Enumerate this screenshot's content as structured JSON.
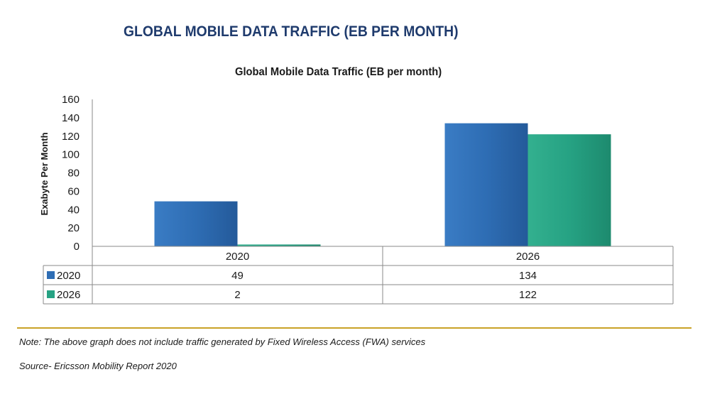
{
  "header": {
    "title": "GLOBAL MOBILE DATA TRAFFIC (EB PER MONTH)"
  },
  "chart_data": {
    "type": "bar",
    "title": "Global Mobile Data Traffic (EB per month)",
    "xlabel": "",
    "ylabel": "Exabyte Per Month",
    "ylim": [
      0,
      160
    ],
    "yticks": [
      0,
      20,
      40,
      60,
      80,
      100,
      120,
      140,
      160
    ],
    "categories": [
      "2020",
      "2026"
    ],
    "series": [
      {
        "name": "2020",
        "values": [
          49,
          134
        ],
        "color": "#2e6db4"
      },
      {
        "name": "2026",
        "values": [
          2,
          122
        ],
        "color": "#26a283"
      }
    ],
    "grid": false,
    "legend": "data-table"
  },
  "footer": {
    "note": "Note: The above graph does not include traffic generated by Fixed Wireless Access (FWA) services",
    "source": "Source- Ericsson Mobility Report 2020"
  }
}
